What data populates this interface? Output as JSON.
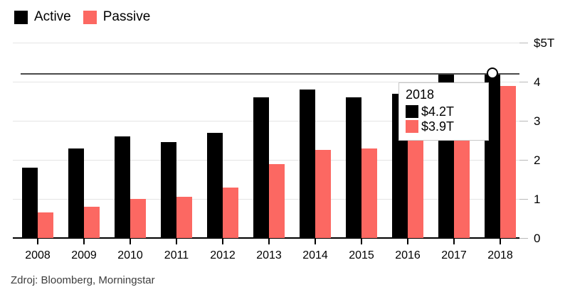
{
  "source": "Zdroj: Bloomberg, Morningstar",
  "colors": {
    "active": "#000000",
    "passive": "#fc6862",
    "gridline": "#e4e4e4",
    "hover_line": "#4a4a4a",
    "axis": "#000000"
  },
  "chart_data": {
    "type": "bar",
    "categories": [
      "2008",
      "2009",
      "2010",
      "2011",
      "2012",
      "2013",
      "2014",
      "2015",
      "2016",
      "2017",
      "2018"
    ],
    "series": [
      {
        "name": "Active",
        "color": "#000000",
        "values": [
          1.8,
          2.3,
          2.6,
          2.45,
          2.7,
          3.6,
          3.8,
          3.6,
          3.7,
          4.2,
          4.2
        ]
      },
      {
        "name": "Passive",
        "color": "#fc6862",
        "values": [
          0.65,
          0.8,
          1.0,
          1.05,
          1.3,
          1.9,
          2.25,
          2.3,
          2.7,
          3.4,
          3.9
        ]
      }
    ],
    "title": "",
    "xlabel": "",
    "ylabel": "",
    "ylim": [
      0,
      5
    ],
    "yticks": [
      {
        "label": "$5T",
        "value": 5
      },
      {
        "label": "4",
        "value": 4
      },
      {
        "label": "3",
        "value": 3
      },
      {
        "label": "2",
        "value": 2
      },
      {
        "label": "1",
        "value": 1
      },
      {
        "label": "0",
        "value": 0
      }
    ],
    "grid": true,
    "legend_position": "top-left",
    "highlighted_category": "2018",
    "hover_line_value": 4.2
  },
  "tooltip": {
    "title": "2018",
    "rows": [
      {
        "series": "Active",
        "label": "$4.2T",
        "color": "#000000"
      },
      {
        "series": "Passive",
        "label": "$3.9T",
        "color": "#fc6862"
      }
    ]
  }
}
